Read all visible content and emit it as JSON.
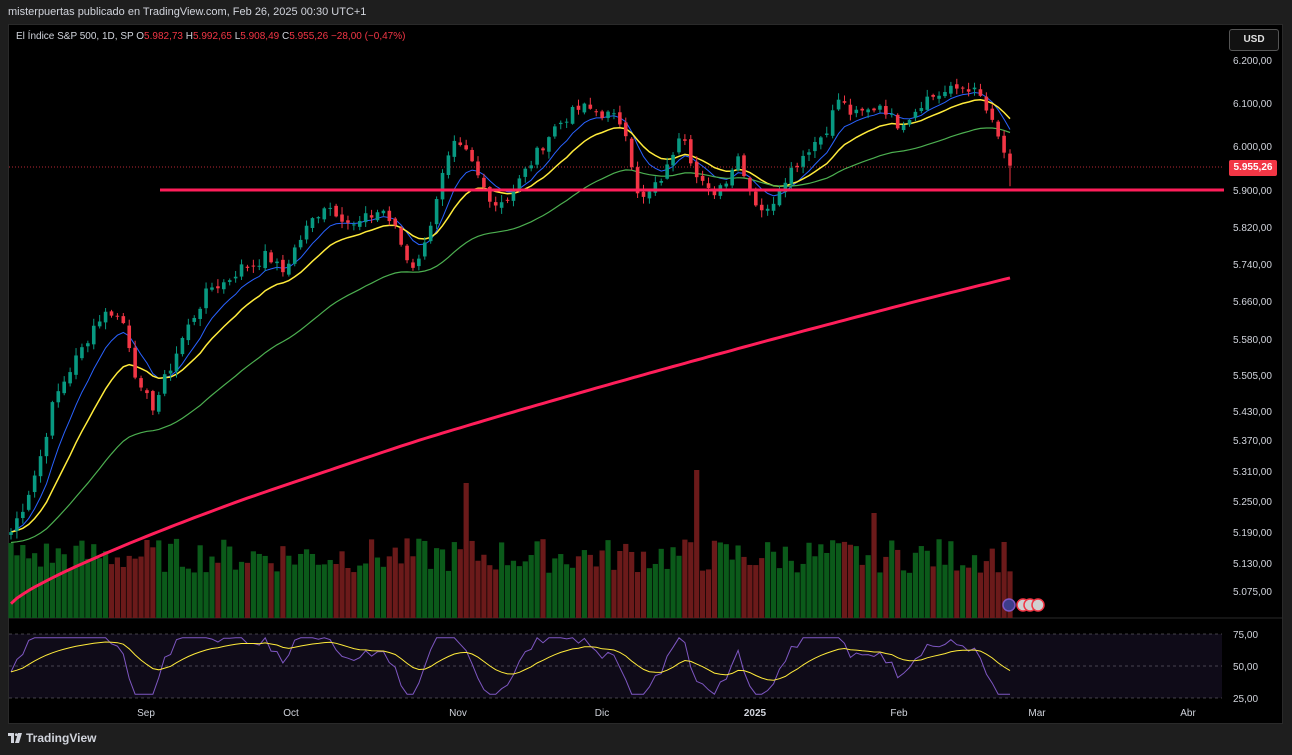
{
  "header": {
    "published": "misterpuertas publicado en TradingView.com, Feb 26, 2025 00:30 UTC+1"
  },
  "legend": {
    "symbol": "El Índice S&P 500, 1D, SP",
    "o_label": "O",
    "o_value": "5.982,73",
    "h_label": "H",
    "h_value": "5.992,65",
    "l_label": "L",
    "l_value": "5.908,49",
    "c_label": "C",
    "c_value": "5.955,26",
    "change": "−28,00 (−0,47%)"
  },
  "currency_button": "USD",
  "last_price_tag": "5.955,26",
  "footer": {
    "brand": "TradingView"
  },
  "colors": {
    "up": "#089981",
    "down": "#f23645",
    "ma_fast": "#2962ff",
    "ma_mid": "#ffeb3b",
    "ma_slow": "#4caf50",
    "ma_200": "#ff1e5a",
    "level": "#ff1e5a",
    "rsi": "#7e57c2",
    "rsi_ma": "#ffeb3b"
  },
  "chart_data": {
    "type": "candlestick",
    "price_axis": [
      "6.200,00",
      "6.100,00",
      "6.000,00",
      "5.900,00",
      "5.820,00",
      "5.740,00",
      "5.660,00",
      "5.580,00",
      "5.505,00",
      "5.430,00",
      "5.370,00",
      "5.310,00",
      "5.250,00",
      "5.190,00",
      "5.130,00",
      "5.075,00"
    ],
    "price_axis_values": [
      6200,
      6100,
      6000,
      5900,
      5820,
      5740,
      5660,
      5580,
      5505,
      5430,
      5370,
      5310,
      5250,
      5190,
      5130,
      5075
    ],
    "x_axis": [
      "Sep",
      "Oct",
      "Nov",
      "Dic",
      "2025",
      "Feb",
      "Mar",
      "Abr"
    ],
    "horizontal_level": 5900,
    "ohlc_anchor_closes": [
      5190,
      5250,
      5330,
      5450,
      5510,
      5560,
      5620,
      5640,
      5610,
      5470,
      5440,
      5510,
      5580,
      5640,
      5690,
      5700,
      5730,
      5740,
      5760,
      5720,
      5780,
      5830,
      5870,
      5850,
      5820,
      5840,
      5860,
      5810,
      5730,
      5780,
      5910,
      6000,
      5980,
      5910,
      5870,
      5890,
      5940,
      5990,
      6040,
      6070,
      6090,
      6080,
      6070,
      6050,
      5870,
      5900,
      5950,
      6050,
      5930,
      5890,
      5920,
      5980,
      5880,
      5850,
      5920,
      5960,
      6000,
      6030,
      6110,
      6070,
      6080,
      6100,
      6050,
      6070,
      6110,
      6120,
      6130,
      6140,
      6110,
      6030,
      5955
    ],
    "ma200_range": [
      5050,
      5710
    ],
    "rsi_axis": [
      "75,00",
      "50,00",
      "25,00"
    ],
    "rsi_axis_values": [
      75,
      50,
      25
    ]
  }
}
